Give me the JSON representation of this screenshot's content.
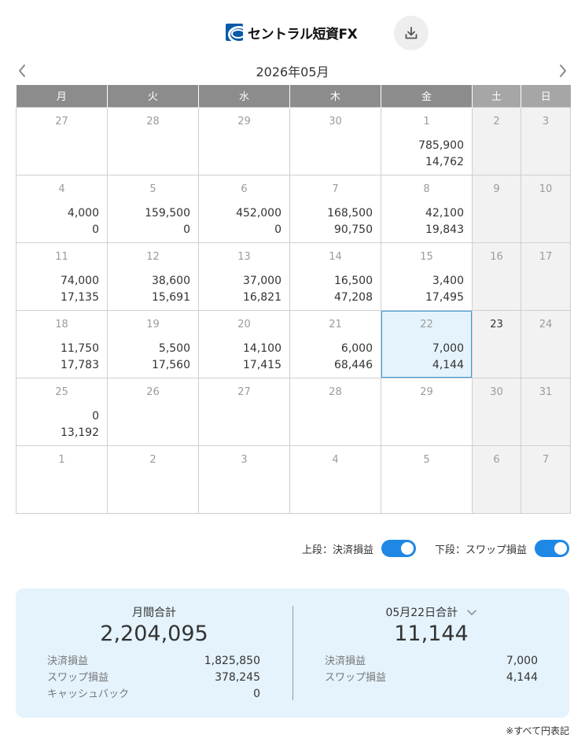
{
  "header": {
    "logo_text": "セントラル短資FX",
    "download_icon": "download-icon"
  },
  "nav": {
    "month_title": "2026年05月",
    "prev_icon": "chevron-left-icon",
    "next_icon": "chevron-right-icon"
  },
  "calendar": {
    "weekdays": [
      "月",
      "火",
      "水",
      "木",
      "金",
      "土",
      "日"
    ],
    "weeks": [
      [
        {
          "day": "27",
          "v1": "",
          "v2": ""
        },
        {
          "day": "28",
          "v1": "",
          "v2": ""
        },
        {
          "day": "29",
          "v1": "",
          "v2": ""
        },
        {
          "day": "30",
          "v1": "",
          "v2": ""
        },
        {
          "day": "1",
          "v1": "785,900",
          "v2": "14,762"
        },
        {
          "day": "2",
          "v1": "",
          "v2": ""
        },
        {
          "day": "3",
          "v1": "",
          "v2": ""
        }
      ],
      [
        {
          "day": "4",
          "v1": "4,000",
          "v2": "0"
        },
        {
          "day": "5",
          "v1": "159,500",
          "v2": "0"
        },
        {
          "day": "6",
          "v1": "452,000",
          "v2": "0"
        },
        {
          "day": "7",
          "v1": "168,500",
          "v2": "90,750"
        },
        {
          "day": "8",
          "v1": "42,100",
          "v2": "19,843"
        },
        {
          "day": "9",
          "v1": "",
          "v2": ""
        },
        {
          "day": "10",
          "v1": "",
          "v2": ""
        }
      ],
      [
        {
          "day": "11",
          "v1": "74,000",
          "v2": "17,135"
        },
        {
          "day": "12",
          "v1": "38,600",
          "v2": "15,691"
        },
        {
          "day": "13",
          "v1": "37,000",
          "v2": "16,821"
        },
        {
          "day": "14",
          "v1": "16,500",
          "v2": "47,208"
        },
        {
          "day": "15",
          "v1": "3,400",
          "v2": "17,495"
        },
        {
          "day": "16",
          "v1": "",
          "v2": ""
        },
        {
          "day": "17",
          "v1": "",
          "v2": ""
        }
      ],
      [
        {
          "day": "18",
          "v1": "11,750",
          "v2": "17,783"
        },
        {
          "day": "19",
          "v1": "5,500",
          "v2": "17,560"
        },
        {
          "day": "20",
          "v1": "14,100",
          "v2": "17,415"
        },
        {
          "day": "21",
          "v1": "6,000",
          "v2": "68,446"
        },
        {
          "day": "22",
          "v1": "7,000",
          "v2": "4,144"
        },
        {
          "day": "23",
          "v1": "",
          "v2": ""
        },
        {
          "day": "24",
          "v1": "",
          "v2": ""
        }
      ],
      [
        {
          "day": "25",
          "v1": "0",
          "v2": "13,192"
        },
        {
          "day": "26",
          "v1": "",
          "v2": ""
        },
        {
          "day": "27",
          "v1": "",
          "v2": ""
        },
        {
          "day": "28",
          "v1": "",
          "v2": ""
        },
        {
          "day": "29",
          "v1": "",
          "v2": ""
        },
        {
          "day": "30",
          "v1": "",
          "v2": ""
        },
        {
          "day": "31",
          "v1": "",
          "v2": ""
        }
      ],
      [
        {
          "day": "1",
          "v1": "",
          "v2": ""
        },
        {
          "day": "2",
          "v1": "",
          "v2": ""
        },
        {
          "day": "3",
          "v1": "",
          "v2": ""
        },
        {
          "day": "4",
          "v1": "",
          "v2": ""
        },
        {
          "day": "5",
          "v1": "",
          "v2": ""
        },
        {
          "day": "6",
          "v1": "",
          "v2": ""
        },
        {
          "day": "7",
          "v1": "",
          "v2": ""
        }
      ]
    ],
    "selected": {
      "week": 3,
      "col": 4
    },
    "today": {
      "week": 3,
      "col": 5
    }
  },
  "toggles": {
    "upper_label": "上段：決済損益",
    "upper_on": true,
    "lower_label": "下段：スワップ損益",
    "lower_on": true
  },
  "summary": {
    "monthly": {
      "title": "月間合計",
      "total": "2,204,095",
      "rows": [
        {
          "label": "決済損益",
          "value": "1,825,850"
        },
        {
          "label": "スワップ損益",
          "value": "378,245"
        },
        {
          "label": "キャッシュバック",
          "value": "0"
        }
      ]
    },
    "daily": {
      "title": "05月22日合計",
      "total": "11,144",
      "rows": [
        {
          "label": "決済損益",
          "value": "7,000"
        },
        {
          "label": "スワップ損益",
          "value": "4,144"
        }
      ]
    }
  },
  "footnote": "※すべて円表記",
  "colors": {
    "header_bg": "#8c8c8c",
    "weekend_header_bg": "#a6a6a6",
    "weekend_bg": "#f2f2f2",
    "selected_bg": "#e4f3fc",
    "selected_border": "#3b9ad6",
    "toggle_on": "#1e88e5",
    "summary_bg": "#e4f3fc"
  }
}
